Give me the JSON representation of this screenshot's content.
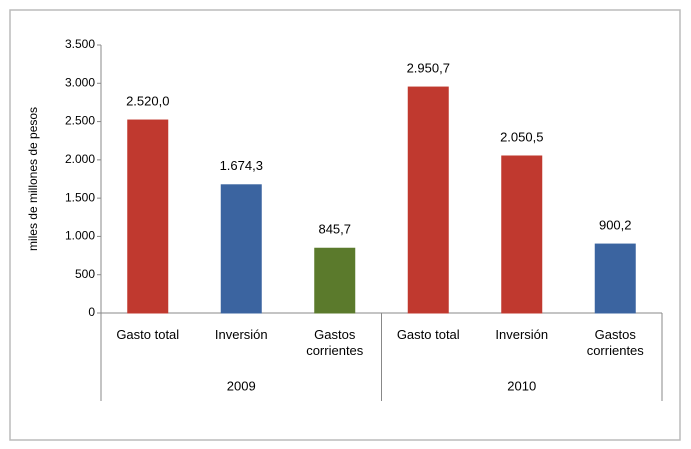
{
  "chart_data": {
    "type": "bar",
    "y_axis_label": "miles de millones de pesos",
    "ylim": [
      0,
      3500
    ],
    "yticks": [
      0,
      500,
      {
        "value": 1000,
        "label": "1.000"
      },
      {
        "value": 1500,
        "label": "1.500"
      },
      {
        "value": 2000,
        "label": "2.000"
      },
      {
        "value": 2500,
        "label": "2.500"
      },
      {
        "value": 3000,
        "label": "3.000"
      },
      {
        "value": 3500,
        "label": "3.500"
      }
    ],
    "groups": [
      {
        "name": "2009",
        "categories": [
          "Gasto total",
          "Inversión",
          "Gastos corrientes"
        ],
        "values": [
          2520.0,
          1674.3,
          845.7
        ],
        "value_labels": [
          "2.520,0",
          "1.674,3",
          "845,7"
        ],
        "colors": [
          "#c0392f",
          "#3b64a0",
          "#5b7a2c"
        ]
      },
      {
        "name": "2010",
        "categories": [
          "Gasto total",
          "Inversión",
          "Gastos corrientes"
        ],
        "values": [
          2950.7,
          2050.5,
          900.2
        ],
        "value_labels": [
          "2.950,7",
          "2.050,5",
          "900,2"
        ],
        "colors": [
          "#c0392f",
          "#c0392f",
          "#3b64a0"
        ]
      }
    ]
  }
}
